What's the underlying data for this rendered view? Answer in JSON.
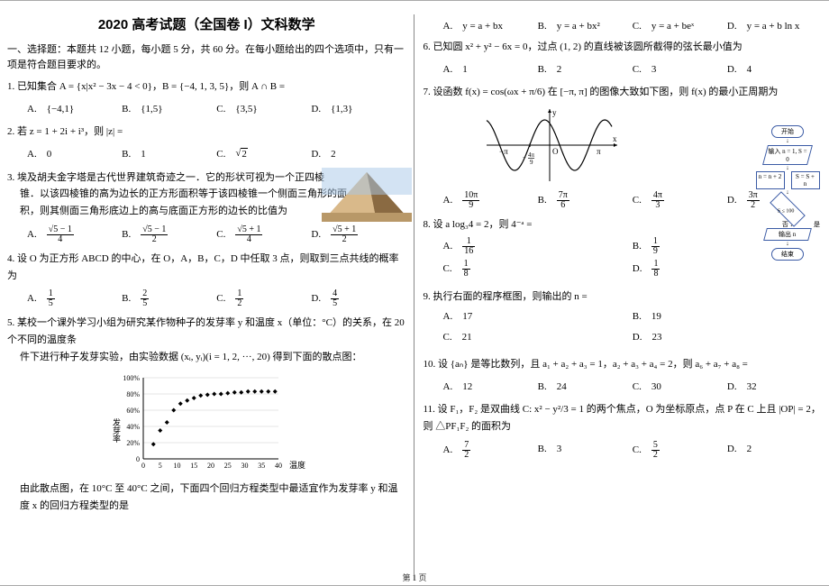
{
  "title": "2020 高考试题（全国卷 I）文科数学",
  "section1": "一、选择题：本题共 12 小题，每小题 5 分，共 60 分。在每小题给出的四个选项中，只有一项是符合题目要求的。",
  "footer": "第 1 页",
  "q1": {
    "text": "1. 已知集合 A = {x|x² − 3x − 4 < 0}，B = {−4, 1, 3, 5}，则 A ∩ B =",
    "A": "A.　{−4,1}",
    "B": "B.　{1,5}",
    "C": "C.　{3,5}",
    "D": "D.　{1,3}"
  },
  "q2": {
    "text": "2. 若 z = 1 + 2i + i³，则 |z| =",
    "A": "A.　0",
    "B": "B.　1",
    "C_pre": "C.　",
    "C_sqrt": "2",
    "D": "D.　2"
  },
  "q3": {
    "l1": "3. 埃及胡夫金字塔是古代世界建筑奇迹之一．它的形状可视为一个正四棱",
    "l2": "锥．以该四棱锥的高为边长的正方形面积等于该四棱锥一个侧面三角形的面",
    "l3": "积，则其侧面三角形底边上的高与底面正方形的边长的比值为",
    "A_n": "√5 − 1",
    "A_d": "4",
    "B_n": "√5 − 1",
    "B_d": "2",
    "C_n": "√5 + 1",
    "C_d": "4",
    "D_n": "√5 + 1",
    "D_d": "2"
  },
  "q4": {
    "text": "4. 设 O 为正方形 ABCD 的中心，在 O，A，B，C，D 中任取 3 点，则取到三点共线的概率为",
    "A_n": "1",
    "A_d": "5",
    "B_n": "2",
    "B_d": "5",
    "C_n": "1",
    "C_d": "2",
    "D_n": "4",
    "D_d": "5"
  },
  "q5": {
    "l1": "5. 某校一个课外学习小组为研究某作物种子的发芽率 y 和温度 x（单位：°C）的关系，在 20 个不同的温度条",
    "l2": "件下进行种子发芽实验，由实验数据 (xᵢ, yᵢ)(i = 1, 2, ···, 20) 得到下面的散点图：",
    "l3": "由此散点图，在 10°C 至 40°C 之间，下面四个回归方程类型中最适宜作为发芽率 y 和温度 x 的回归方程类型的是",
    "chart": {
      "ylabel": "发芽率",
      "xlabel": "温度/°C",
      "yticks": [
        "0",
        "20%",
        "40%",
        "60%",
        "80%",
        "100%"
      ],
      "xticks": [
        "0",
        "5",
        "10",
        "15",
        "20",
        "25",
        "30",
        "35",
        "40"
      ],
      "points": [
        [
          3,
          18
        ],
        [
          5,
          35
        ],
        [
          7,
          45
        ],
        [
          9,
          60
        ],
        [
          11,
          68
        ],
        [
          13,
          72
        ],
        [
          15,
          75
        ],
        [
          17,
          78
        ],
        [
          19,
          79
        ],
        [
          21,
          80
        ],
        [
          23,
          80
        ],
        [
          25,
          81
        ],
        [
          27,
          82
        ],
        [
          29,
          82
        ],
        [
          31,
          83
        ],
        [
          33,
          83
        ],
        [
          35,
          83
        ],
        [
          37,
          83
        ],
        [
          39,
          83
        ]
      ],
      "axis_color": "#000",
      "grid_color": "#ccc",
      "point_color": "#000"
    },
    "A": "A.　y = a + bx",
    "B": "B.　y = a + bx²",
    "C": "C.　y = a + beˣ",
    "D": "D.　y = a + b ln x"
  },
  "q6": {
    "text": "6. 已知圆 x² + y² − 6x = 0，过点 (1, 2) 的直线被该圆所截得的弦长最小值为",
    "A": "A.　1",
    "B": "B.　2",
    "C": "C.　3",
    "D": "D.　4"
  },
  "q7": {
    "text": "7. 设函数 f(x) = cos(ωx + π/6) 在 [−π, π] 的图像大致如下图，则 f(x) 的最小正周期为",
    "A_n": "10π",
    "A_d": "9",
    "B_n": "7π",
    "B_d": "6",
    "C_n": "4π",
    "C_d": "3",
    "D_n": "3π",
    "D_d": "2",
    "sine": {
      "xlabel_left": "−π",
      "xlabel_mid_n": "4π",
      "xlabel_mid_d": "9",
      "xlabel_right": "π",
      "ylabel": "y",
      "xlabel": "x",
      "origin": "O",
      "axis_color": "#000",
      "curve_color": "#000"
    },
    "flowchart": {
      "start": "开始",
      "input": "输入 n = 1, S = 0",
      "left": "n = n + 2",
      "right": "S = S + n",
      "cond": "S ≤ 100",
      "yes": "是",
      "no": "否",
      "output": "输出 n",
      "end": "结束",
      "border_color": "#3b5ba5"
    }
  },
  "q8": {
    "text": "8. 设 a log₃4 = 2，则 4⁻ᵃ =",
    "A_n": "1",
    "A_d": "16",
    "B_n": "1",
    "B_d": "9",
    "C_n": "1",
    "C_d": "8",
    "D_n": "1",
    "D_d": "8"
  },
  "q9": {
    "text": "9. 执行右面的程序框图，则输出的 n =",
    "A": "A.　17",
    "B": "B.　19",
    "C": "C.　21",
    "D": "D.　23"
  },
  "q10": {
    "text": "10. 设 {aₙ} 是等比数列，且 a₁ + a₂ + a₃ = 1，a₂ + a₃ + a₄ = 2，则 a₆ + a₇ + a₈ =",
    "A": "A.　12",
    "B": "B.　24",
    "C": "C.　30",
    "D": "D.　32"
  },
  "q11": {
    "text": "11. 设 F₁，F₂ 是双曲线 C: x² − y²/3 = 1 的两个焦点，O 为坐标原点，点 P 在 C 上且 |OP| = 2，则 △PF₁F₂ 的面积为",
    "A_n": "7",
    "A_d": "2",
    "B": "B.　3",
    "C_n": "5",
    "C_d": "2",
    "D": "D.　2"
  }
}
